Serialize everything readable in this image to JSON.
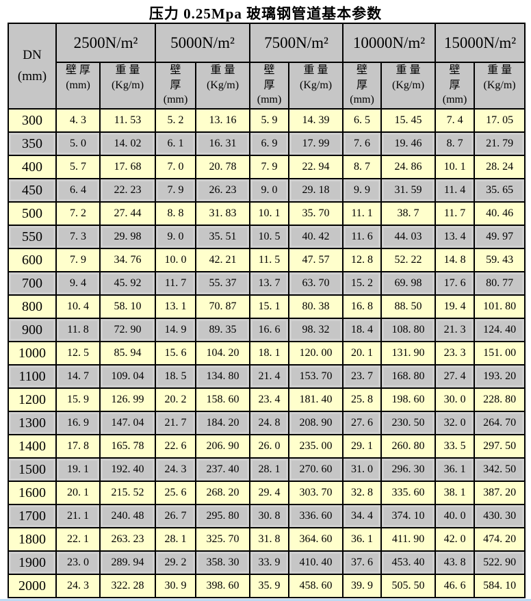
{
  "title": "压力 0.25Mpa 玻璃钢管道基本参数",
  "colors": {
    "row_yellow": "#FFFFCC",
    "row_gray": "#C6C6C6",
    "header_gray": "#C6C6C6",
    "border_color": "#000000",
    "bottom_edge": "#BDD9F2"
  },
  "table": {
    "dn_header": "DN\n(mm)",
    "groups": [
      {
        "load": "2500N/m²",
        "wall": "壁 厚\n(mm)",
        "weight": "重 量\n(Kg/m)"
      },
      {
        "load": "5000N/m²",
        "wall": "壁\n厚\n(mm)",
        "weight": "重 量\n(Kg/m)"
      },
      {
        "load": "7500N/m²",
        "wall": "壁\n厚\n(mm)",
        "weight": "重 量\n(Kg/m)"
      },
      {
        "load": "10000N/m²",
        "wall": "壁\n厚\n(mm)",
        "weight": "重 量\n(Kg/m)"
      },
      {
        "load": "15000N/m²",
        "wall": "壁\n厚\n(mm)",
        "weight": "重 量\n(Kg/m)"
      }
    ],
    "rows": [
      {
        "dn": "300",
        "cells": [
          "4. 3",
          "11. 53",
          "5. 2",
          "13. 16",
          "5. 9",
          "14. 39",
          "6. 5",
          "15. 45",
          "7. 4",
          "17. 05"
        ]
      },
      {
        "dn": "350",
        "cells": [
          "5. 0",
          "14. 02",
          "6. 1",
          "16. 31",
          "6. 9",
          "17. 99",
          "7. 6",
          "19. 46",
          "8. 7",
          "21. 79"
        ]
      },
      {
        "dn": "400",
        "cells": [
          "5. 7",
          "17. 68",
          "7. 0",
          "20. 78",
          "7. 9",
          "22. 94",
          "8. 7",
          "24. 86",
          "10. 1",
          "28. 24"
        ]
      },
      {
        "dn": "450",
        "cells": [
          "6. 4",
          "22. 23",
          "7. 9",
          "26. 23",
          "9. 0",
          "29. 18",
          "9. 9",
          "31. 59",
          "11. 4",
          "35. 65"
        ]
      },
      {
        "dn": "500",
        "cells": [
          "7. 2",
          "27. 44",
          "8. 8",
          "31. 83",
          "10. 1",
          "35. 70",
          "11. 1",
          "38. 7",
          "11. 7",
          "40. 46"
        ]
      },
      {
        "dn": "550",
        "cells": [
          "7. 3",
          "29. 98",
          "9. 0",
          "35. 51",
          "10. 5",
          "40. 42",
          "11. 6",
          "44. 03",
          "13. 4",
          "49. 97"
        ]
      },
      {
        "dn": "600",
        "cells": [
          "7. 9",
          "34. 76",
          "10. 0",
          "42. 21",
          "11. 5",
          "47. 57",
          "12. 8",
          "52. 22",
          "14. 8",
          "59. 43"
        ]
      },
      {
        "dn": "700",
        "cells": [
          "9. 4",
          "45. 92",
          "11. 7",
          "55. 37",
          "13. 7",
          "63. 70",
          "15. 2",
          "69. 98",
          "17. 6",
          "80. 77"
        ]
      },
      {
        "dn": "800",
        "cells": [
          "10. 4",
          "58. 10",
          "13. 1",
          "70. 87",
          "15. 1",
          "80. 38",
          "16. 8",
          "88. 50",
          "19. 4",
          "101. 80"
        ]
      },
      {
        "dn": "900",
        "cells": [
          "11. 8",
          "72. 90",
          "14. 9",
          "89. 35",
          "16. 6",
          "98. 32",
          "18. 4",
          "108. 80",
          "21. 3",
          "124. 40"
        ]
      },
      {
        "dn": "1000",
        "cells": [
          "12. 5",
          "85. 94",
          "15. 6",
          "104. 20",
          "18. 1",
          "120. 00",
          "20. 1",
          "131. 90",
          "23. 3",
          "151. 00"
        ]
      },
      {
        "dn": "1100",
        "cells": [
          "14. 7",
          "109. 04",
          "18. 5",
          "134. 80",
          "21. 4",
          "153. 70",
          "23. 7",
          "168. 80",
          "27. 4",
          "193. 20"
        ]
      },
      {
        "dn": "1200",
        "cells": [
          "15. 9",
          "126. 99",
          "20. 2",
          "158. 60",
          "23. 4",
          "181. 40",
          "25. 8",
          "198. 60",
          "30. 0",
          "228. 80"
        ]
      },
      {
        "dn": "1300",
        "cells": [
          "16. 9",
          "147. 04",
          "21. 7",
          "184. 20",
          "24. 8",
          "208. 90",
          "27. 6",
          "230. 50",
          "32. 0",
          "264. 70"
        ]
      },
      {
        "dn": "1400",
        "cells": [
          "17. 8",
          "165. 78",
          "22. 6",
          "206. 90",
          "26. 0",
          "235. 00",
          "29. 1",
          "260. 80",
          "33. 5",
          "297. 50"
        ]
      },
      {
        "dn": "1500",
        "cells": [
          "19. 1",
          "192. 40",
          "24. 3",
          "237. 40",
          "28. 1",
          "270. 60",
          "31. 0",
          "296. 30",
          "36. 1",
          "342. 50"
        ]
      },
      {
        "dn": "1600",
        "cells": [
          "20. 1",
          "215. 52",
          "25. 6",
          "268. 20",
          "29. 4",
          "303. 70",
          "32. 8",
          "335. 60",
          "38. 1",
          "387. 20"
        ]
      },
      {
        "dn": "1700",
        "cells": [
          "21. 1",
          "240. 48",
          "26. 7",
          "295. 80",
          "30. 8",
          "336. 60",
          "34. 4",
          "374. 10",
          "40. 0",
          "430. 30"
        ]
      },
      {
        "dn": "1800",
        "cells": [
          "22. 1",
          "263. 23",
          "28. 1",
          "325. 70",
          "31. 8",
          "364. 60",
          "36. 1",
          "411. 90",
          "42. 0",
          "474. 20"
        ]
      },
      {
        "dn": "1900",
        "cells": [
          "23. 0",
          "289. 94",
          "29. 2",
          "358. 30",
          "33. 9",
          "410. 40",
          "37. 6",
          "453. 40",
          "43. 8",
          "522. 90"
        ]
      },
      {
        "dn": "2000",
        "cells": [
          "24. 3",
          "322. 28",
          "30. 9",
          "398. 60",
          "35. 9",
          "458. 60",
          "39. 9",
          "505. 50",
          "46. 6",
          "584. 10"
        ]
      }
    ]
  }
}
